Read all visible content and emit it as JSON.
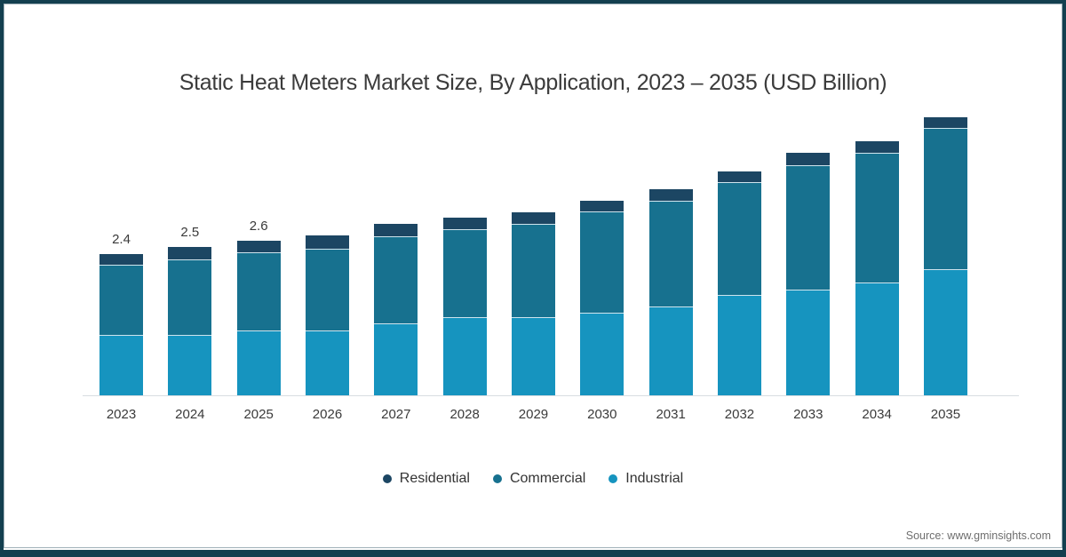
{
  "title": "Static Heat Meters Market Size, By Application, 2023 – 2035 (USD Billion)",
  "source": "Source: www.gminsights.com",
  "colors": {
    "residential": "#1c4663",
    "commercial": "#17718f",
    "industrial": "#1694bf",
    "frame": "#133f4f",
    "axis_line": "#d8dde1",
    "segment_separator": "#cfe4ed",
    "title_text": "#3b3b3b",
    "label_text": "#3a3a3a",
    "source_text": "#6e6e6e"
  },
  "chart_data": {
    "type": "bar",
    "stacked": true,
    "title": "Static Heat Meters Market Size, By Application, 2023 – 2035 (USD Billion)",
    "unit": "USD Billion",
    "grid": false,
    "legend_position": "bottom",
    "ylim": [
      0,
      5
    ],
    "categories": [
      "2023",
      "2024",
      "2025",
      "2026",
      "2027",
      "2028",
      "2029",
      "2030",
      "2031",
      "2032",
      "2033",
      "2034",
      "2035"
    ],
    "series": [
      {
        "name": "Residential",
        "color": "#1c4663",
        "values": [
          0.18,
          0.21,
          0.2,
          0.23,
          0.21,
          0.2,
          0.2,
          0.18,
          0.2,
          0.18,
          0.21,
          0.2,
          0.18
        ]
      },
      {
        "name": "Commercial",
        "color": "#17718f",
        "values": [
          1.2,
          1.29,
          1.34,
          1.4,
          1.49,
          1.5,
          1.6,
          1.73,
          1.81,
          1.93,
          2.13,
          2.22,
          2.42
        ]
      },
      {
        "name": "Industrial",
        "color": "#1694bf",
        "values": [
          1.03,
          1.03,
          1.11,
          1.11,
          1.23,
          1.34,
          1.34,
          1.41,
          1.52,
          1.72,
          1.81,
          1.93,
          2.16
        ]
      }
    ],
    "totals": [
      2.4,
      2.5,
      2.6,
      2.74,
      2.93,
      3.04,
      3.14,
      3.32,
      3.53,
      3.83,
      4.15,
      4.35,
      4.76
    ],
    "bar_total_labels": [
      "2.4",
      "2.5",
      "2.6",
      "",
      "",
      "",
      "",
      "",
      "",
      "",
      "",
      "",
      ""
    ]
  },
  "legend": {
    "items": [
      {
        "label": "Residential",
        "color": "#1c4663"
      },
      {
        "label": "Commercial",
        "color": "#17718f"
      },
      {
        "label": "Industrial",
        "color": "#1694bf"
      }
    ]
  }
}
